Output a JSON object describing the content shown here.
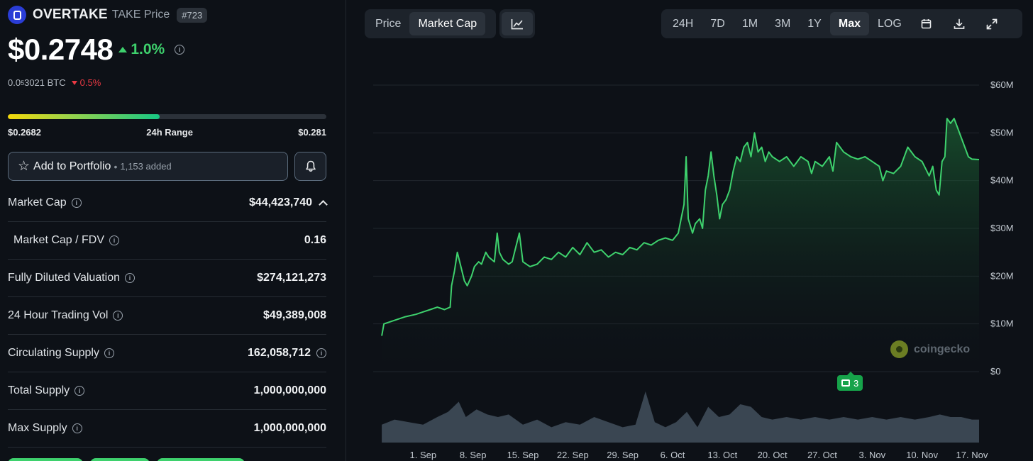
{
  "coin": {
    "name": "OVERTAKE",
    "sub": "TAKE Price",
    "rank": "#723",
    "price": "$0.2748",
    "change_24h": "1.0%",
    "btc_price_prefix": "0.0",
    "btc_price_sub": "5",
    "btc_price_suffix": "3021 BTC",
    "btc_change": "0.5%"
  },
  "range": {
    "low": "$0.2682",
    "label": "24h Range",
    "high": "$0.281",
    "position": 0.477
  },
  "portfolio": {
    "label": "Add to Portfolio",
    "count": "1,153 added"
  },
  "stats": [
    {
      "label": "Market Cap",
      "value": "$44,423,740"
    },
    {
      "label": "Market Cap / FDV",
      "value": "0.16"
    },
    {
      "label": "Fully Diluted Valuation",
      "value": "$274,121,273"
    },
    {
      "label": "24 Hour Trading Vol",
      "value": "$49,389,008"
    },
    {
      "label": "Circulating Supply",
      "value": "162,058,712"
    },
    {
      "label": "Total Supply",
      "value": "1,000,000,000"
    },
    {
      "label": "Max Supply",
      "value": "1,000,000,000"
    }
  ],
  "tabs": {
    "price": "Price",
    "market_cap": "Market Cap"
  },
  "ranges": [
    "24H",
    "7D",
    "1M",
    "3M",
    "1Y",
    "Max",
    "LOG"
  ],
  "active_range": "Max",
  "watermark": "coingecko",
  "news_count": "3",
  "colors": {
    "line": "#3ed16d",
    "accent_up": "#3ed16d",
    "accent_down": "#ea3943",
    "volume": "#3a4652"
  },
  "icons": {
    "chart_type": "line-chart-icon",
    "calendar": "calendar-icon",
    "download": "download-icon",
    "fullscreen": "expand-icon",
    "bell": "bell-icon",
    "star": "star-icon"
  },
  "chart_data": {
    "type": "area",
    "series": "Market Cap",
    "y_ticks": [
      "$60M",
      "$50M",
      "$40M",
      "$30M",
      "$20M",
      "$10M",
      "$0"
    ],
    "ylim": [
      0,
      60
    ],
    "x_ticks": [
      "1. Sep",
      "8. Sep",
      "15. Sep",
      "22. Sep",
      "29. Sep",
      "6. Oct",
      "13. Oct",
      "20. Oct",
      "27. Oct",
      "3. Nov",
      "10. Nov",
      "17. Nov"
    ],
    "x_range_days": [
      -7,
      78
    ],
    "points": [
      [
        -5.8,
        7.5
      ],
      [
        -5.5,
        10.0
      ],
      [
        -4.5,
        10.5
      ],
      [
        -3.5,
        11.0
      ],
      [
        -2.5,
        11.5
      ],
      [
        -1,
        12.0
      ],
      [
        0,
        12.5
      ],
      [
        1,
        13.0
      ],
      [
        2,
        13.5
      ],
      [
        3,
        13.0
      ],
      [
        3.8,
        13.5
      ],
      [
        4.0,
        18.0
      ],
      [
        4.4,
        21.0
      ],
      [
        4.8,
        25.0
      ],
      [
        5.3,
        22.0
      ],
      [
        5.8,
        19.0
      ],
      [
        6.2,
        18.0
      ],
      [
        6.8,
        20.0
      ],
      [
        7.2,
        22.0
      ],
      [
        7.8,
        23.0
      ],
      [
        8.2,
        22.5
      ],
      [
        8.8,
        25.0
      ],
      [
        9.2,
        24.0
      ],
      [
        9.6,
        23.5
      ],
      [
        10.0,
        23.0
      ],
      [
        10.4,
        29.0
      ],
      [
        10.7,
        25.0
      ],
      [
        11.2,
        23.5
      ],
      [
        12.0,
        22.5
      ],
      [
        12.5,
        23.0
      ],
      [
        13.0,
        26.0
      ],
      [
        13.5,
        29.0
      ],
      [
        14.0,
        23.0
      ],
      [
        15.0,
        22.0
      ],
      [
        16.0,
        22.5
      ],
      [
        17.0,
        24.0
      ],
      [
        18.0,
        23.5
      ],
      [
        19.0,
        25.0
      ],
      [
        20.0,
        24.0
      ],
      [
        21.0,
        26.0
      ],
      [
        22.0,
        24.5
      ],
      [
        23.0,
        27.0
      ],
      [
        24.0,
        25.0
      ],
      [
        25.0,
        25.5
      ],
      [
        26.0,
        24.0
      ],
      [
        27.0,
        25.0
      ],
      [
        28.0,
        24.5
      ],
      [
        29.0,
        26.0
      ],
      [
        30.0,
        25.5
      ],
      [
        31.0,
        27.0
      ],
      [
        32.0,
        26.5
      ],
      [
        33.0,
        27.5
      ],
      [
        34.0,
        28.0
      ],
      [
        35.0,
        27.5
      ],
      [
        35.8,
        29.0
      ],
      [
        36.2,
        32.0
      ],
      [
        36.6,
        35.0
      ],
      [
        36.9,
        45.0
      ],
      [
        37.2,
        32.0
      ],
      [
        37.8,
        29.0
      ],
      [
        38.2,
        31.0
      ],
      [
        38.8,
        32.0
      ],
      [
        39.2,
        30.0
      ],
      [
        39.6,
        38.0
      ],
      [
        40.0,
        41.0
      ],
      [
        40.4,
        46.0
      ],
      [
        40.8,
        41.0
      ],
      [
        41.2,
        37.0
      ],
      [
        41.6,
        32.0
      ],
      [
        42.0,
        35.0
      ],
      [
        42.5,
        36.0
      ],
      [
        43.0,
        38.0
      ],
      [
        43.5,
        42.0
      ],
      [
        44.0,
        45.0
      ],
      [
        44.5,
        44.0
      ],
      [
        45.0,
        47.0
      ],
      [
        45.5,
        48.0
      ],
      [
        46.0,
        45.0
      ],
      [
        46.5,
        50.0
      ],
      [
        47.0,
        46.0
      ],
      [
        47.5,
        47.0
      ],
      [
        48.0,
        44.0
      ],
      [
        48.5,
        46.0
      ],
      [
        49.0,
        45.0
      ],
      [
        50.0,
        44.0
      ],
      [
        51.0,
        45.0
      ],
      [
        52.0,
        43.0
      ],
      [
        53.0,
        45.0
      ],
      [
        54.0,
        44.0
      ],
      [
        54.5,
        41.5
      ],
      [
        55.0,
        44.0
      ],
      [
        56.0,
        43.0
      ],
      [
        57.0,
        45.0
      ],
      [
        57.5,
        42.0
      ],
      [
        58.0,
        48.0
      ],
      [
        59.0,
        46.0
      ],
      [
        60.0,
        45.0
      ],
      [
        61.0,
        44.5
      ],
      [
        62.0,
        45.0
      ],
      [
        63.0,
        44.0
      ],
      [
        64.0,
        43.0
      ],
      [
        64.5,
        40.0
      ],
      [
        65.0,
        42.0
      ],
      [
        66.0,
        41.5
      ],
      [
        67.0,
        43.0
      ],
      [
        68.0,
        47.0
      ],
      [
        69.0,
        45.0
      ],
      [
        70.0,
        44.0
      ],
      [
        71.0,
        41.0
      ],
      [
        71.5,
        43.0
      ],
      [
        72.0,
        38.0
      ],
      [
        72.4,
        37.0
      ],
      [
        72.8,
        44.0
      ],
      [
        73.2,
        45.0
      ],
      [
        73.5,
        53.0
      ],
      [
        74.0,
        52.0
      ],
      [
        74.5,
        53.0
      ],
      [
        75.0,
        51.0
      ],
      [
        75.5,
        49.0
      ],
      [
        76.0,
        47.0
      ],
      [
        76.5,
        45.0
      ],
      [
        77.0,
        44.5
      ],
      [
        78.0,
        44.4
      ]
    ],
    "volume_relative": [
      [
        -5.8,
        0.35
      ],
      [
        -4,
        0.45
      ],
      [
        -2,
        0.4
      ],
      [
        0,
        0.35
      ],
      [
        2,
        0.5
      ],
      [
        3.5,
        0.6
      ],
      [
        5,
        0.8
      ],
      [
        6,
        0.5
      ],
      [
        7.5,
        0.65
      ],
      [
        9,
        0.55
      ],
      [
        10.5,
        0.5
      ],
      [
        12,
        0.55
      ],
      [
        14,
        0.35
      ],
      [
        16,
        0.45
      ],
      [
        18,
        0.3
      ],
      [
        20,
        0.4
      ],
      [
        22,
        0.35
      ],
      [
        24,
        0.5
      ],
      [
        26,
        0.4
      ],
      [
        28,
        0.3
      ],
      [
        29.8,
        0.35
      ],
      [
        31.2,
        1.0
      ],
      [
        32.5,
        0.4
      ],
      [
        34,
        0.3
      ],
      [
        35.5,
        0.4
      ],
      [
        37,
        0.6
      ],
      [
        38.5,
        0.3
      ],
      [
        40,
        0.7
      ],
      [
        41.5,
        0.5
      ],
      [
        43,
        0.55
      ],
      [
        44.5,
        0.75
      ],
      [
        46,
        0.7
      ],
      [
        47.5,
        0.5
      ],
      [
        49,
        0.45
      ],
      [
        51,
        0.5
      ],
      [
        53,
        0.45
      ],
      [
        55,
        0.5
      ],
      [
        57,
        0.45
      ],
      [
        59,
        0.5
      ],
      [
        61,
        0.45
      ],
      [
        63,
        0.5
      ],
      [
        65,
        0.45
      ],
      [
        67,
        0.5
      ],
      [
        69,
        0.45
      ],
      [
        71,
        0.5
      ],
      [
        72.5,
        0.55
      ],
      [
        74,
        0.5
      ],
      [
        75.5,
        0.5
      ],
      [
        77,
        0.45
      ],
      [
        78,
        0.45
      ]
    ]
  }
}
